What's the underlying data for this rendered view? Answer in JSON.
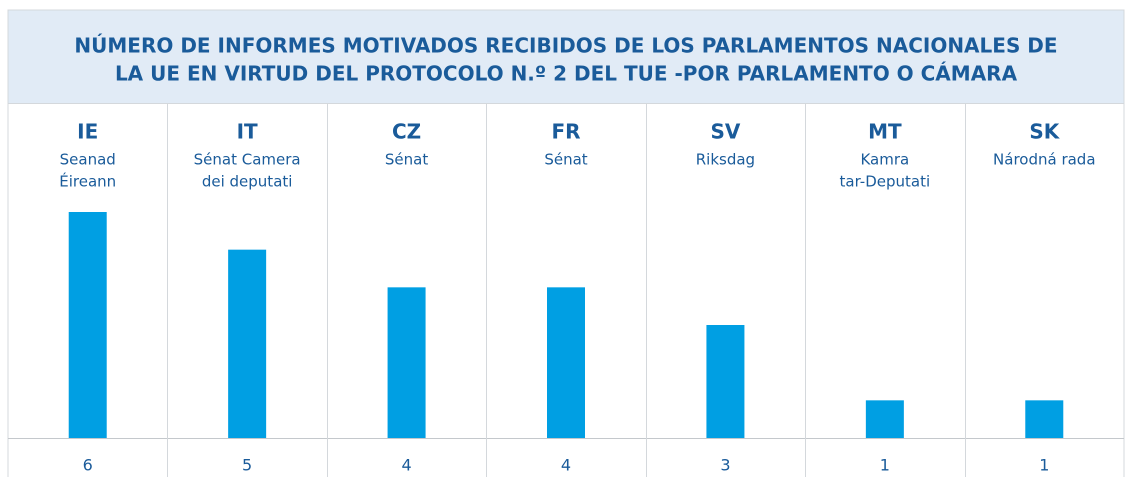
{
  "chart_data": {
    "type": "bar",
    "title": [
      "NÚMERO DE INFORMES MOTIVADOS RECIBIDOS DE LOS PARLAMENTOS NACIONALES DE",
      "LA UE EN VIRTUD DEL PROTOCOLO N.º 2 DEL TUE -POR PARLAMENTO O CÁMARA"
    ],
    "categories": [
      "IE",
      "IT",
      "CZ",
      "FR",
      "SV",
      "MT",
      "SK"
    ],
    "chambers": [
      [
        "Seanad",
        "Éireann"
      ],
      [
        "Sénat Camera",
        "dei deputati"
      ],
      [
        "Sénat"
      ],
      [
        "Sénat"
      ],
      [
        "Riksdag"
      ],
      [
        "Kamra",
        "tar-Deputati"
      ],
      [
        "Národná rada"
      ]
    ],
    "values": [
      6,
      5,
      4,
      4,
      3,
      1,
      1
    ],
    "color": "#009fe3",
    "ylim": [
      0,
      6
    ]
  }
}
